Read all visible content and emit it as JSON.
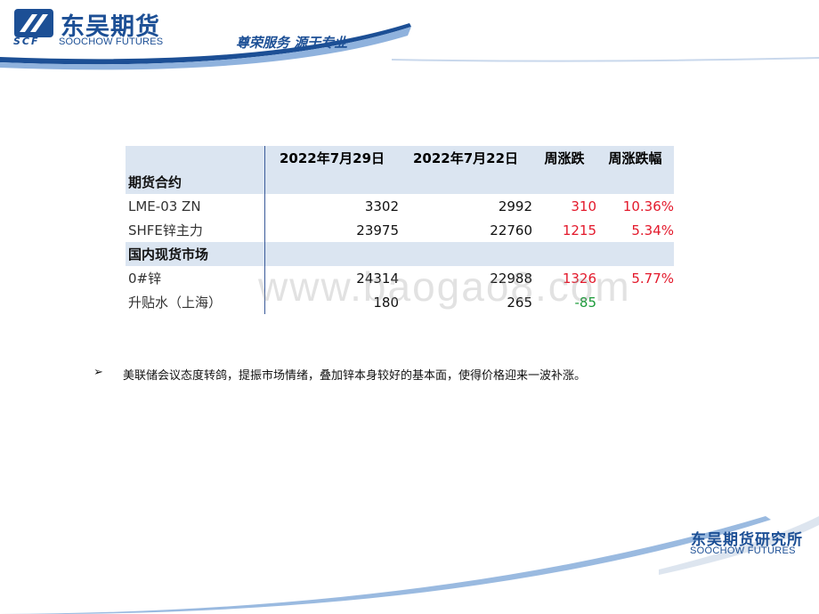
{
  "header": {
    "company_cn": "东吴期货",
    "company_abbr": "SCF",
    "company_en": "SOOCHOW FUTURES",
    "slogan": "尊荣服务 源于专业"
  },
  "table": {
    "headers": [
      "",
      "2022年7月29日",
      "2022年7月22日",
      "周涨跌",
      "周涨跌幅"
    ],
    "sections": [
      {
        "title": "期货合约",
        "rows": [
          {
            "name": "LME-03 ZN",
            "cur": "3302",
            "prev": "2992",
            "chg": "310",
            "pct": "10.36%",
            "dir": "up"
          },
          {
            "name": "SHFE锌主力",
            "cur": "23975",
            "prev": "22760",
            "chg": "1215",
            "pct": "5.34%",
            "dir": "up"
          }
        ]
      },
      {
        "title": "国内现货市场",
        "rows": [
          {
            "name": "0#锌",
            "cur": "24314",
            "prev": "22988",
            "chg": "1326",
            "pct": "5.77%",
            "dir": "up"
          },
          {
            "name": "升贴水（上海）",
            "cur": "180",
            "prev": "265",
            "chg": "-85",
            "pct": "",
            "dir": "down"
          }
        ]
      }
    ],
    "colors": {
      "up": "#e3192b",
      "down": "#1a9a38",
      "header_bg": "#dbe5f1"
    }
  },
  "watermark": "www.baogao8.com",
  "bullet": {
    "marker": "➢",
    "text": "美联储会议态度转鸽，提振市场情绪，叠加锌本身较好的基本面，使得价格迎来一波补涨。"
  },
  "footer": {
    "cn": "东吴期货研究所",
    "en": "SOOCHOW FUTURES"
  }
}
